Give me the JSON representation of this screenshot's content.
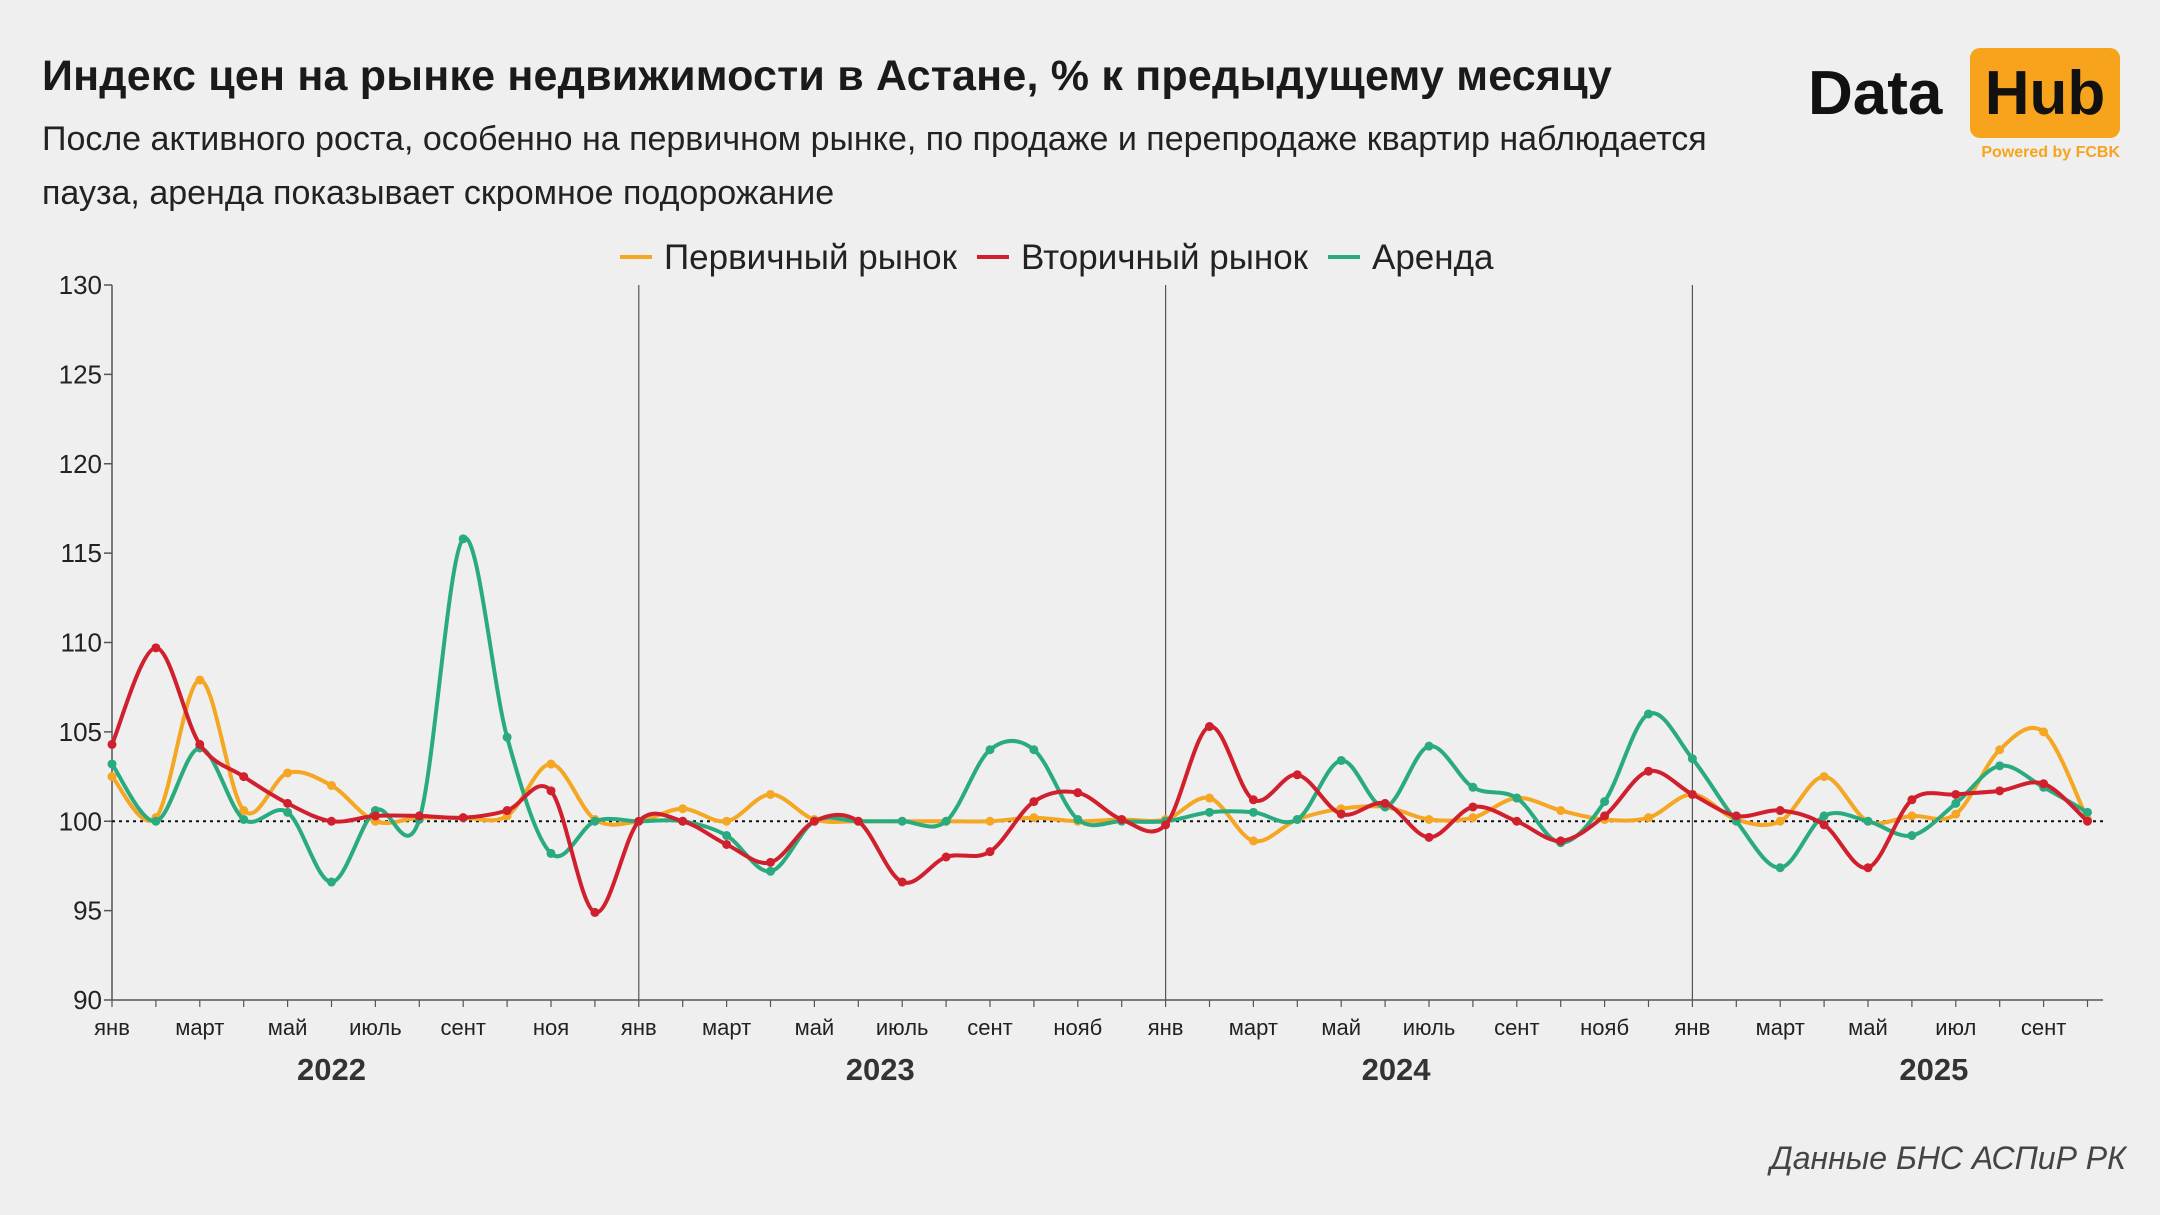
{
  "title": "Индекс цен на рынке недвижимости в Астане, % к предыдущему месяцу",
  "subtitle": "После активного роста, особенно на первичном рынке, по продаже и перепродаже квартир наблюдается пауза, аренда показывает скромное подорожание",
  "logo": {
    "data": "Data",
    "hub": "Hub",
    "powered": "Powered by FCBK",
    "accent": "#f7a31c"
  },
  "source": "Данные БНС АСПиР РК",
  "chart_data": {
    "type": "line",
    "ylim": [
      90,
      130
    ],
    "y_ticks": [
      90,
      95,
      100,
      105,
      110,
      115,
      120,
      125,
      130
    ],
    "reference_line": 100,
    "legend_position": "top-center",
    "month_tick_labels": [
      {
        "i": 0,
        "label": "янв"
      },
      {
        "i": 2,
        "label": "март"
      },
      {
        "i": 4,
        "label": "май"
      },
      {
        "i": 6,
        "label": "июль"
      },
      {
        "i": 8,
        "label": "сент"
      },
      {
        "i": 10,
        "label": "ноя"
      },
      {
        "i": 12,
        "label": "янв"
      },
      {
        "i": 14,
        "label": "март"
      },
      {
        "i": 16,
        "label": "май"
      },
      {
        "i": 18,
        "label": "июль"
      },
      {
        "i": 20,
        "label": "сент"
      },
      {
        "i": 22,
        "label": "нояб"
      },
      {
        "i": 24,
        "label": "янв"
      },
      {
        "i": 26,
        "label": "март"
      },
      {
        "i": 28,
        "label": "май"
      },
      {
        "i": 30,
        "label": "июль"
      },
      {
        "i": 32,
        "label": "сент"
      },
      {
        "i": 34,
        "label": "нояб"
      },
      {
        "i": 36,
        "label": "янв"
      },
      {
        "i": 38,
        "label": "март"
      },
      {
        "i": 40,
        "label": "май"
      },
      {
        "i": 42,
        "label": "июл"
      },
      {
        "i": 44,
        "label": "сент"
      }
    ],
    "years": [
      {
        "label": "2022",
        "center": 5
      },
      {
        "label": "2023",
        "center": 17.5
      },
      {
        "label": "2024",
        "center": 29.25
      },
      {
        "label": "2025",
        "center": 41.5
      }
    ],
    "year_separators": [
      12,
      24,
      36
    ],
    "x_count": 46,
    "series": [
      {
        "name": "Первичный рынок",
        "color": "#f5a623",
        "values": [
          102.5,
          100.2,
          107.9,
          100.6,
          102.7,
          102.0,
          100.0,
          100.2,
          100.2,
          100.3,
          103.2,
          100.1,
          100.0,
          100.7,
          100.0,
          101.5,
          100.1,
          100.0,
          100.0,
          100.0,
          100.0,
          100.2,
          100.0,
          100.1,
          100.1,
          101.3,
          98.9,
          100.1,
          100.7,
          100.8,
          100.1,
          100.2,
          101.3,
          100.6,
          100.1,
          100.2,
          101.5,
          100.1,
          100.0,
          102.5,
          100.0,
          100.3,
          100.4,
          104.0,
          105.0,
          100.1
        ]
      },
      {
        "name": "Вторичный рынок",
        "color": "#d0202e",
        "values": [
          104.3,
          109.7,
          104.3,
          102.5,
          101.0,
          100.0,
          100.3,
          100.3,
          100.2,
          100.6,
          101.7,
          94.9,
          100.0,
          100.0,
          98.7,
          97.7,
          100.0,
          100.0,
          96.6,
          98.0,
          98.3,
          101.1,
          101.6,
          100.1,
          99.8,
          105.3,
          101.2,
          102.6,
          100.4,
          101.0,
          99.1,
          100.8,
          100.0,
          98.9,
          100.3,
          102.8,
          101.5,
          100.3,
          100.6,
          99.8,
          97.4,
          101.2,
          101.5,
          101.7,
          102.1,
          100.0
        ]
      },
      {
        "name": "Аренда",
        "color": "#2aab7f",
        "values": [
          103.2,
          100.0,
          104.1,
          100.1,
          100.5,
          96.6,
          100.6,
          100.1,
          115.8,
          104.7,
          98.2,
          100.0,
          100.0,
          100.0,
          99.2,
          97.2,
          100.0,
          100.0,
          100.0,
          100.0,
          104.0,
          104.0,
          100.1,
          100.0,
          100.0,
          100.5,
          100.5,
          100.1,
          103.4,
          100.8,
          104.2,
          101.9,
          101.3,
          98.8,
          101.1,
          106.0,
          103.5,
          100.0,
          97.4,
          100.3,
          100.0,
          99.2,
          101.0,
          103.1,
          101.9,
          100.5
        ]
      }
    ]
  }
}
